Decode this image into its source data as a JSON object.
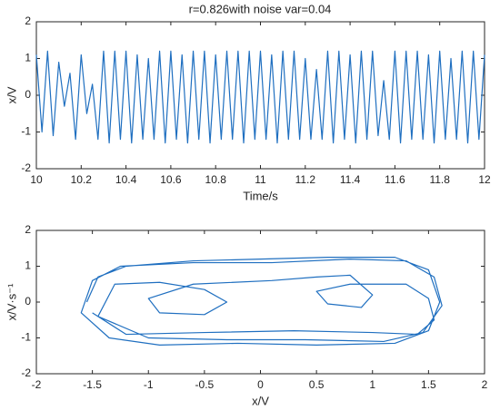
{
  "chart_data": [
    {
      "type": "line",
      "title": "r=0.826with noise var=0.04",
      "x_label": "Time/s",
      "y_label": "x/V",
      "xlim": [
        10,
        12
      ],
      "ylim": [
        -2,
        2
      ],
      "xticks": [
        10,
        10.2,
        10.4,
        10.6,
        10.8,
        11,
        11.2,
        11.4,
        11.6,
        11.8,
        12
      ],
      "yticks": [
        -2,
        -1,
        0,
        1,
        2
      ],
      "series": [
        {
          "color": "#1f6fc0",
          "x": [
            10,
            10.025,
            10.05,
            10.075,
            10.1,
            10.125,
            10.15,
            10.175,
            10.2,
            10.225,
            10.25,
            10.275,
            10.3,
            10.325,
            10.35,
            10.375,
            10.4,
            10.425,
            10.45,
            10.475,
            10.5,
            10.525,
            10.55,
            10.575,
            10.6,
            10.625,
            10.65,
            10.675,
            10.7,
            10.725,
            10.75,
            10.775,
            10.8,
            10.825,
            10.85,
            10.875,
            10.9,
            10.925,
            10.95,
            10.975,
            11,
            11.025,
            11.05,
            11.075,
            11.1,
            11.125,
            11.15,
            11.175,
            11.2,
            11.225,
            11.25,
            11.275,
            11.3,
            11.325,
            11.35,
            11.375,
            11.4,
            11.425,
            11.45,
            11.475,
            11.5,
            11.525,
            11.55,
            11.575,
            11.6,
            11.625,
            11.65,
            11.675,
            11.7,
            11.725,
            11.75,
            11.775,
            11.8,
            11.825,
            11.85,
            11.875,
            11.9,
            11.925,
            11.95,
            11.975,
            12
          ],
          "values": [
            1.1,
            -1.0,
            1.2,
            -1.1,
            0.9,
            -0.3,
            0.6,
            -1.2,
            1.1,
            -0.5,
            0.3,
            -1.2,
            1.2,
            -1.3,
            1.2,
            -1.2,
            1.2,
            -1.3,
            1.1,
            -1.2,
            1.0,
            -1.2,
            1.2,
            -1.3,
            1.2,
            -1.2,
            1.1,
            -1.3,
            1.2,
            -1.2,
            1.2,
            -1.3,
            1.1,
            -1.2,
            1.2,
            -1.2,
            1.2,
            -1.3,
            1.2,
            -1.2,
            1.2,
            -1.2,
            1.1,
            -1.3,
            1.2,
            -1.2,
            1.2,
            -1.2,
            1.0,
            -1.2,
            0.7,
            -1.2,
            1.2,
            -1.3,
            1.2,
            -1.2,
            1.1,
            -1.3,
            1.2,
            -1.2,
            1.2,
            -1.1,
            0.4,
            -1.2,
            1.2,
            -1.3,
            1.2,
            -1.2,
            1.2,
            -1.2,
            1.1,
            -1.3,
            1.2,
            -1.2,
            1.0,
            -1.2,
            1.2,
            -1.3,
            1.2,
            -1.2,
            1.1
          ]
        }
      ]
    },
    {
      "type": "line",
      "x_label": "x/V",
      "y_label": "x/V·s⁻¹",
      "xlim": [
        -2,
        2
      ],
      "ylim": [
        -2,
        2
      ],
      "xticks": [
        -2,
        -1.5,
        -1,
        -0.5,
        0,
        0.5,
        1,
        1.5,
        2
      ],
      "yticks": [
        -2,
        -1,
        0,
        1,
        2
      ],
      "series": [
        {
          "color": "#1f6fc0",
          "x": [
            -1.55,
            -1.45,
            -1.2,
            -0.6,
            0,
            0.6,
            1.2,
            1.5,
            1.6,
            1.5,
            1.2,
            0.5,
            -0.2,
            -0.9,
            -1.35,
            -1.6,
            -1.5,
            -1.25,
            -0.6,
            0.1,
            0.8,
            1.3,
            1.55,
            1.62,
            1.45,
            1.1,
            0.4,
            -0.3,
            -1.0,
            -1.45,
            -1.3,
            -0.9,
            -0.5,
            -0.3,
            -0.5,
            -0.9,
            -1.0,
            -0.6,
            0.1,
            0.5,
            0.8,
            1.0,
            0.9,
            0.6,
            0.5,
            0.8,
            1.3,
            1.5,
            1.55,
            1.4,
            1.0,
            0.3,
            -0.5,
            -1.2,
            -1.5
          ],
          "y": [
            0,
            0.7,
            1.0,
            1.15,
            1.2,
            1.25,
            1.25,
            0.9,
            0,
            -0.8,
            -1.15,
            -1.2,
            -1.15,
            -1.2,
            -1.0,
            -0.3,
            0.6,
            1.0,
            1.1,
            1.1,
            1.2,
            1.15,
            0.7,
            -0.1,
            -0.85,
            -1.1,
            -1.05,
            -1.05,
            -1.0,
            -0.4,
            0.5,
            0.55,
            0.35,
            0,
            -0.35,
            -0.3,
            0.1,
            0.5,
            0.6,
            0.7,
            0.75,
            0.2,
            -0.15,
            -0.05,
            0.3,
            0.5,
            0.5,
            0.1,
            -0.5,
            -0.9,
            -0.85,
            -0.8,
            -0.85,
            -0.9,
            -0.3
          ]
        }
      ]
    }
  ]
}
